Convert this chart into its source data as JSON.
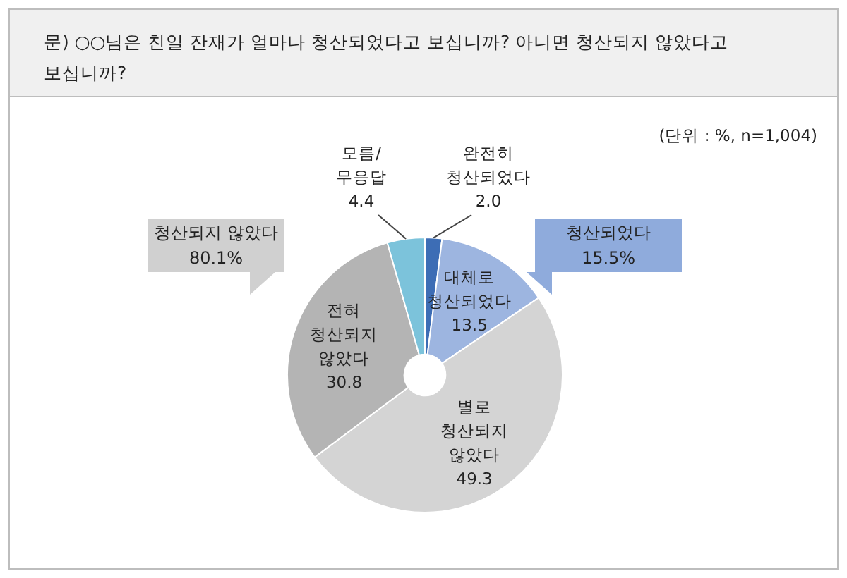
{
  "chart_data": {
    "type": "donut",
    "title": "문) ○○님은 친일 잔재가 얼마나 청산되었다고 보십니까? 아니면 청산되지 않았다고 보십니까?",
    "categories": [
      "완전히 청산되었다",
      "대체로 청산되었다",
      "별로 청산되지 않았다",
      "전혀 청산되지 않았다",
      "모름/무응답"
    ],
    "values": [
      2.0,
      13.5,
      49.3,
      30.8,
      4.4
    ],
    "colors": [
      "#3d6db5",
      "#9db5e0",
      "#d4d4d4",
      "#b4b4b4",
      "#7cc3db"
    ],
    "value_labels": [
      "2.0",
      "13.5",
      "49.3",
      "30.8",
      "4.4"
    ],
    "annotations": [
      "(단위 : %, n=1,004)",
      "청산되지 않았다 80.1%",
      "청산되었다 15.5%"
    ]
  }
}
